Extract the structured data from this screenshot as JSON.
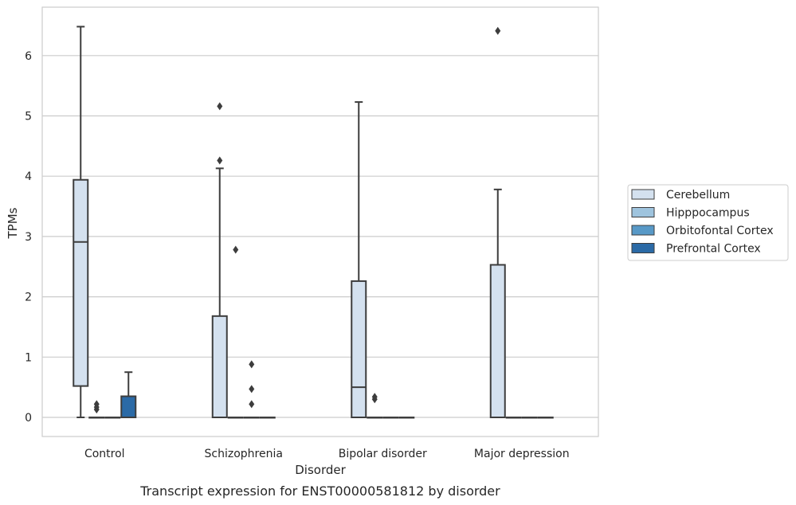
{
  "caption": "Transcript expression for ENST00000581812 by disorder",
  "chart_data": {
    "type": "box",
    "xlabel": "Disorder",
    "ylabel": "TPMs",
    "ylim": [
      -0.3,
      6.8
    ],
    "yticks": [
      0,
      1,
      2,
      3,
      4,
      5,
      6
    ],
    "grid": true,
    "legend_position": "right",
    "categories": [
      "Control",
      "Schizophrenia",
      "Bipolar disorder",
      "Major depression"
    ],
    "series": [
      {
        "name": "Cerebellum",
        "color": "#d4e1ef",
        "boxes": [
          {
            "category": "Control",
            "whisker_low": 0,
            "q1": 0.52,
            "median": 2.91,
            "q3": 3.94,
            "whisker_high": 6.48,
            "outliers": []
          },
          {
            "category": "Schizophrenia",
            "whisker_low": 0,
            "q1": 0,
            "median": 0,
            "q3": 1.68,
            "whisker_high": 4.13,
            "outliers": [
              4.26,
              5.16
            ]
          },
          {
            "category": "Bipolar disorder",
            "whisker_low": 0,
            "q1": 0,
            "median": 0.5,
            "q3": 2.26,
            "whisker_high": 5.23,
            "outliers": []
          },
          {
            "category": "Major depression",
            "whisker_low": 0,
            "q1": 0,
            "median": 0,
            "q3": 2.53,
            "whisker_high": 3.78,
            "outliers": [
              6.41
            ]
          }
        ]
      },
      {
        "name": "Hipppocampus",
        "color": "#9fc4de",
        "boxes": [
          {
            "category": "Control",
            "whisker_low": 0,
            "q1": 0,
            "median": 0,
            "q3": 0,
            "whisker_high": 0,
            "outliers": [
              0.13,
              0.17,
              0.22
            ]
          },
          {
            "category": "Schizophrenia",
            "whisker_low": 0,
            "q1": 0,
            "median": 0,
            "q3": 0,
            "whisker_high": 0,
            "outliers": [
              2.78
            ]
          },
          {
            "category": "Bipolar disorder",
            "whisker_low": 0,
            "q1": 0,
            "median": 0,
            "q3": 0,
            "whisker_high": 0,
            "outliers": [
              0.3,
              0.34
            ]
          },
          {
            "category": "Major depression",
            "whisker_low": 0,
            "q1": 0,
            "median": 0,
            "q3": 0,
            "whisker_high": 0,
            "outliers": []
          }
        ]
      },
      {
        "name": "Orbitofontal Cortex",
        "color": "#5899c7",
        "boxes": [
          {
            "category": "Control",
            "whisker_low": 0,
            "q1": 0,
            "median": 0,
            "q3": 0,
            "whisker_high": 0,
            "outliers": []
          },
          {
            "category": "Schizophrenia",
            "whisker_low": 0,
            "q1": 0,
            "median": 0,
            "q3": 0,
            "whisker_high": 0,
            "outliers": [
              0.22,
              0.47,
              0.88
            ]
          },
          {
            "category": "Bipolar disorder",
            "whisker_low": 0,
            "q1": 0,
            "median": 0,
            "q3": 0,
            "whisker_high": 0,
            "outliers": []
          },
          {
            "category": "Major depression",
            "whisker_low": 0,
            "q1": 0,
            "median": 0,
            "q3": 0,
            "whisker_high": 0,
            "outliers": []
          }
        ]
      },
      {
        "name": "Prefrontal Cortex",
        "color": "#2b6aa6",
        "boxes": [
          {
            "category": "Control",
            "whisker_low": 0,
            "q1": 0,
            "median": 0,
            "q3": 0.35,
            "whisker_high": 0.75,
            "outliers": []
          },
          {
            "category": "Schizophrenia",
            "whisker_low": 0,
            "q1": 0,
            "median": 0,
            "q3": 0,
            "whisker_high": 0,
            "outliers": []
          },
          {
            "category": "Bipolar disorder",
            "whisker_low": 0,
            "q1": 0,
            "median": 0,
            "q3": 0,
            "whisker_high": 0,
            "outliers": []
          },
          {
            "category": "Major depression",
            "whisker_low": 0,
            "q1": 0,
            "median": 0,
            "q3": 0,
            "whisker_high": 0,
            "outliers": []
          }
        ]
      }
    ]
  }
}
